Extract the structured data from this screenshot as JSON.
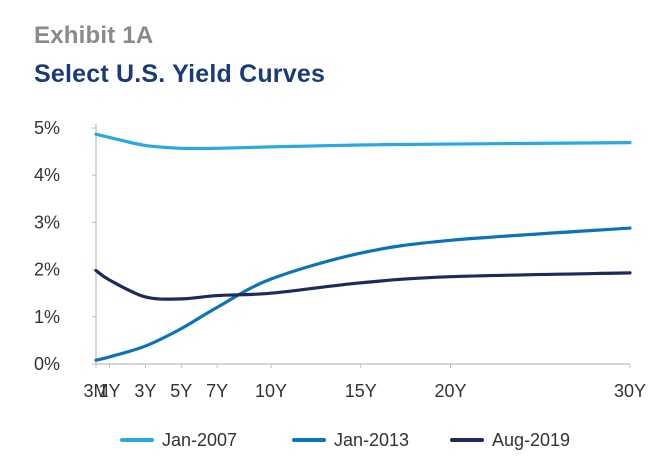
{
  "header": {
    "exhibit": "Exhibit 1A",
    "title": "Select U.S. Yield Curves"
  },
  "chart_data": {
    "type": "line",
    "title": "Select U.S. Yield Curves",
    "xlabel": "",
    "ylabel": "",
    "categories": [
      "3M",
      "1Y",
      "3Y",
      "5Y",
      "7Y",
      "10Y",
      "15Y",
      "20Y",
      "30Y"
    ],
    "x_years": [
      0.25,
      1,
      3,
      5,
      7,
      10,
      15,
      20,
      30
    ],
    "ylim": [
      0,
      5
    ],
    "y_ticks": [
      "0%",
      "1%",
      "2%",
      "3%",
      "4%",
      "5%"
    ],
    "grid": false,
    "legend_position": "bottom",
    "series": [
      {
        "name": "Jan-2007",
        "color": "#27a9e1",
        "values": [
          4.87,
          4.8,
          4.63,
          4.57,
          4.57,
          4.6,
          4.64,
          4.66,
          4.69
        ]
      },
      {
        "name": "Jan-2013",
        "color": "#0a74b8",
        "values": [
          0.08,
          0.15,
          0.38,
          0.75,
          1.2,
          1.8,
          2.35,
          2.62,
          2.88
        ]
      },
      {
        "name": "Aug-2019",
        "color": "#1c2a5c",
        "values": [
          1.98,
          1.78,
          1.42,
          1.38,
          1.45,
          1.5,
          1.72,
          1.85,
          1.93
        ]
      }
    ]
  }
}
